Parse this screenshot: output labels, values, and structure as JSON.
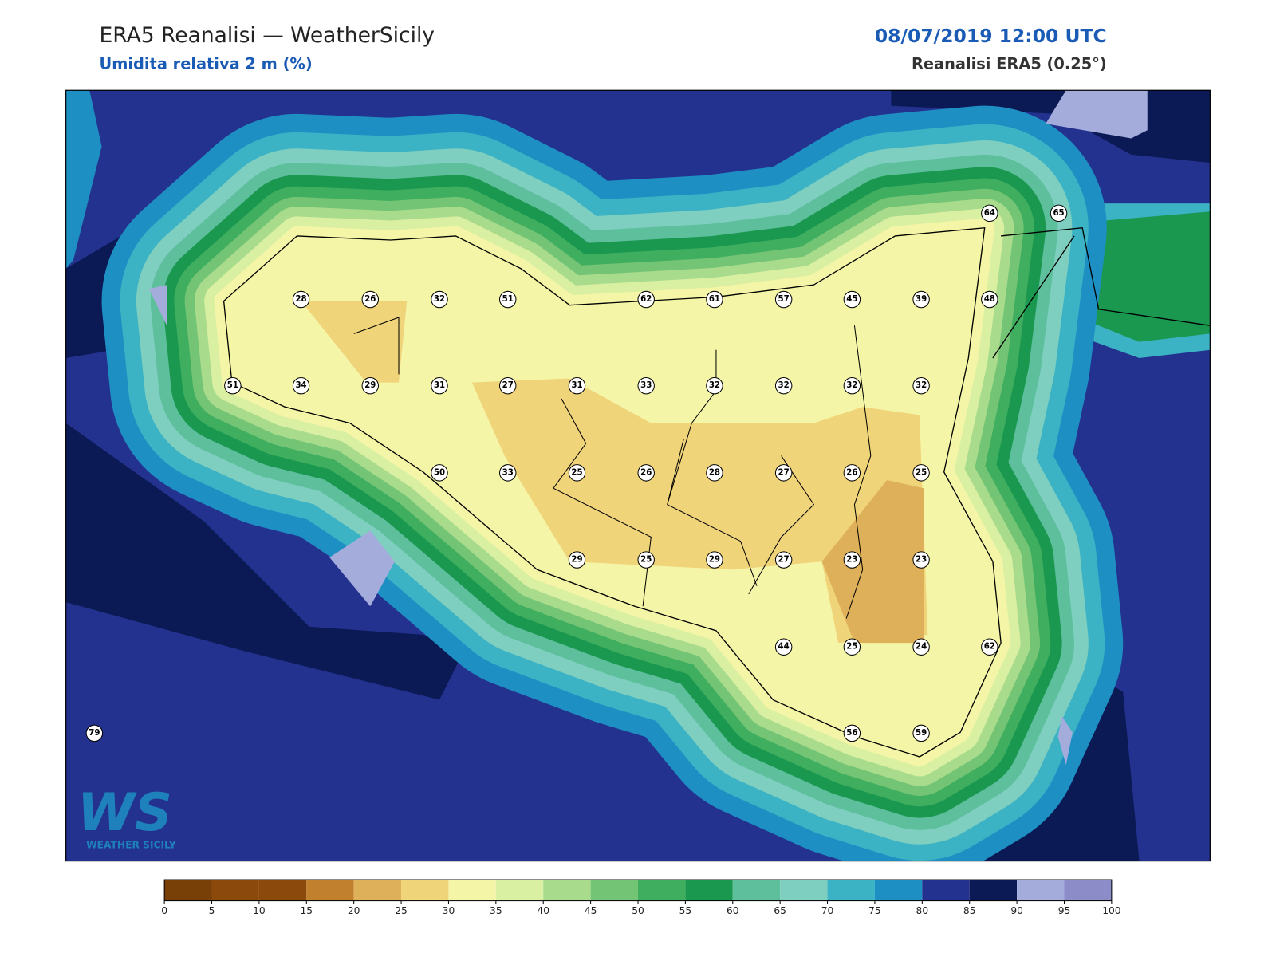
{
  "header": {
    "title": "ERA5 Reanalisi — WeatherSicily",
    "subtitle": "Umidita relativa 2 m (%)",
    "datetime": "08/07/2019 12:00 UTC",
    "source": "Reanalisi ERA5 (0.25°)"
  },
  "stations": [
    64,
    65,
    28,
    26,
    32,
    51,
    62,
    61,
    57,
    45,
    39,
    48,
    51,
    34,
    29,
    31,
    27,
    31,
    33,
    32,
    32,
    32,
    32,
    50,
    33,
    25,
    26,
    28,
    27,
    26,
    25,
    29,
    25,
    29,
    27,
    23,
    23,
    44,
    25,
    24,
    62,
    79,
    56,
    59
  ],
  "colorbar": {
    "ticks": [
      0,
      5,
      10,
      15,
      20,
      25,
      30,
      35,
      40,
      45,
      50,
      55,
      60,
      65,
      70,
      75,
      80,
      85,
      90,
      95,
      100
    ],
    "colors": [
      "#784006",
      "#8b4a0c",
      "#8b4a0c",
      "#c0802e",
      "#deb05a",
      "#f0d47a",
      "#f5f5a8",
      "#d9efa2",
      "#a8db8c",
      "#74c476",
      "#3fae5e",
      "#1a9850",
      "#5dbf9c",
      "#7ecfc0",
      "#3bb3c4",
      "#1e8fc3",
      "#24328f",
      "#0b1a55",
      "#a4acdc",
      "#8c8cc8"
    ]
  },
  "logo": {
    "mark": "WS",
    "name": "WEATHER SICILY"
  }
}
